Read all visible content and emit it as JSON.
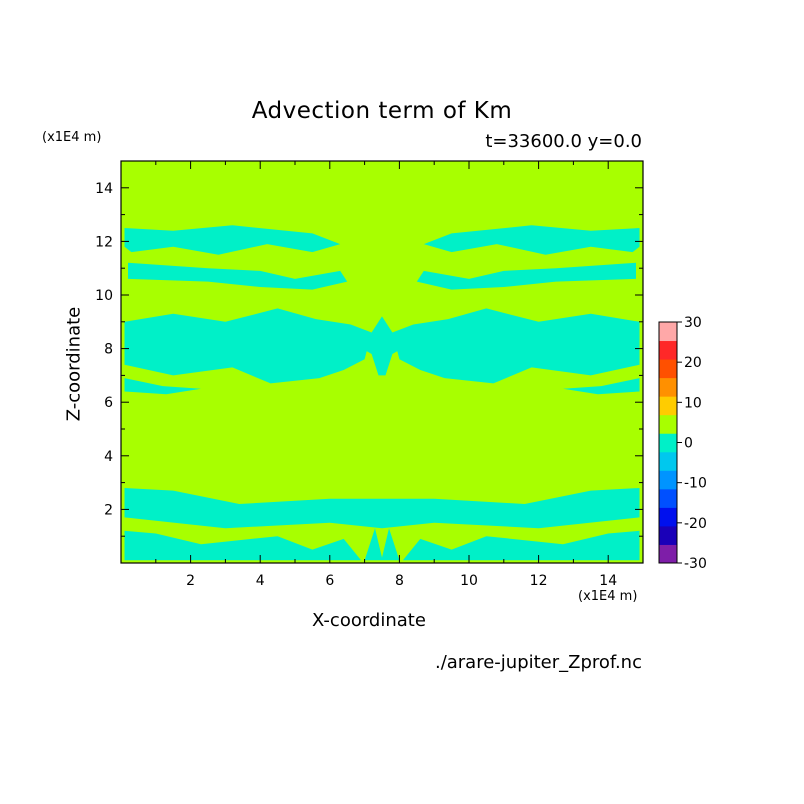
{
  "chart_data": {
    "type": "heatmap",
    "title": "Advection term of Km",
    "subtitle": "t=33600.0 y=0.0",
    "xlabel": "X-coordinate",
    "ylabel": "Z-coordinate",
    "x_unit": "(x1E4 m)",
    "y_unit": "(x1E4 m)",
    "source": "./arare-jupiter_Zprof.nc",
    "xlim": [
      0,
      15
    ],
    "ylim": [
      0,
      15
    ],
    "x_ticks": [
      2,
      4,
      6,
      8,
      10,
      12,
      14
    ],
    "y_ticks": [
      2,
      4,
      6,
      8,
      10,
      12,
      14
    ],
    "colorbar": {
      "levels": [
        -30,
        -25,
        -20,
        -15,
        -10,
        -5,
        0,
        5,
        10,
        15,
        20,
        25,
        30
      ],
      "tick_labels": [
        "30",
        "20",
        "10",
        "0",
        "-10",
        "-20",
        "-30"
      ],
      "tick_values": [
        30,
        20,
        10,
        0,
        -10,
        -20,
        -30
      ],
      "colors": [
        "#7e1ea8",
        "#1a00b8",
        "#0010ee",
        "#0050ff",
        "#0094ff",
        "#00c8ee",
        "#00f0c8",
        "#a8ff00",
        "#ffcc00",
        "#ff9000",
        "#ff5000",
        "#ff2828",
        "#ffa8a8"
      ]
    },
    "background_level_color": "#a8ff00",
    "negative_patch_color": "#00f0c8",
    "negative_regions": [
      {
        "name": "top-band",
        "points": [
          [
            0.1,
            12.5
          ],
          [
            1.5,
            12.4
          ],
          [
            3.2,
            12.6
          ],
          [
            5.5,
            12.3
          ],
          [
            6.3,
            11.9
          ],
          [
            5.5,
            11.6
          ],
          [
            4.2,
            11.9
          ],
          [
            2.8,
            11.5
          ],
          [
            1.5,
            11.8
          ],
          [
            0.3,
            11.6
          ],
          [
            0.1,
            11.8
          ]
        ]
      },
      {
        "name": "top-band-right",
        "points": [
          [
            14.9,
            12.5
          ],
          [
            13.5,
            12.4
          ],
          [
            11.8,
            12.6
          ],
          [
            9.5,
            12.3
          ],
          [
            8.7,
            11.9
          ],
          [
            9.5,
            11.6
          ],
          [
            10.8,
            11.9
          ],
          [
            12.2,
            11.5
          ],
          [
            13.5,
            11.8
          ],
          [
            14.7,
            11.6
          ],
          [
            14.9,
            11.8
          ]
        ]
      },
      {
        "name": "upper-band-left",
        "points": [
          [
            0.2,
            11.2
          ],
          [
            2.5,
            11.0
          ],
          [
            4.0,
            10.9
          ],
          [
            5.0,
            10.6
          ],
          [
            6.3,
            10.9
          ],
          [
            6.5,
            10.5
          ],
          [
            5.5,
            10.2
          ],
          [
            4.0,
            10.3
          ],
          [
            2.5,
            10.5
          ],
          [
            0.2,
            10.6
          ]
        ]
      },
      {
        "name": "upper-band-right",
        "points": [
          [
            14.8,
            11.2
          ],
          [
            12.5,
            11.0
          ],
          [
            11.0,
            10.9
          ],
          [
            10.0,
            10.6
          ],
          [
            8.7,
            10.9
          ],
          [
            8.5,
            10.5
          ],
          [
            9.5,
            10.2
          ],
          [
            11.0,
            10.3
          ],
          [
            12.5,
            10.5
          ],
          [
            14.8,
            10.6
          ]
        ]
      },
      {
        "name": "mid-lobe-left",
        "points": [
          [
            0.1,
            9.0
          ],
          [
            1.5,
            9.3
          ],
          [
            3.0,
            9.0
          ],
          [
            4.5,
            9.5
          ],
          [
            5.6,
            9.1
          ],
          [
            6.6,
            8.9
          ],
          [
            7.2,
            8.6
          ],
          [
            7.0,
            7.6
          ],
          [
            6.4,
            7.2
          ],
          [
            5.7,
            6.9
          ],
          [
            4.3,
            6.7
          ],
          [
            3.2,
            7.3
          ],
          [
            1.5,
            7.0
          ],
          [
            0.1,
            7.4
          ]
        ]
      },
      {
        "name": "mid-lobe-right",
        "points": [
          [
            14.9,
            9.0
          ],
          [
            13.5,
            9.3
          ],
          [
            12.0,
            9.0
          ],
          [
            10.5,
            9.5
          ],
          [
            9.4,
            9.1
          ],
          [
            8.4,
            8.9
          ],
          [
            7.8,
            8.6
          ],
          [
            8.0,
            7.6
          ],
          [
            8.6,
            7.2
          ],
          [
            9.3,
            6.9
          ],
          [
            10.7,
            6.7
          ],
          [
            11.8,
            7.3
          ],
          [
            13.5,
            7.0
          ],
          [
            14.9,
            7.4
          ]
        ]
      },
      {
        "name": "center-star",
        "points": [
          [
            7.5,
            9.2
          ],
          [
            7.8,
            8.6
          ],
          [
            8.2,
            8.1
          ],
          [
            7.8,
            7.8
          ],
          [
            7.6,
            7.0
          ],
          [
            7.4,
            7.0
          ],
          [
            7.2,
            7.8
          ],
          [
            6.8,
            8.1
          ],
          [
            7.2,
            8.6
          ]
        ]
      },
      {
        "name": "lower-left-strip",
        "points": [
          [
            0.1,
            6.9
          ],
          [
            1.2,
            6.6
          ],
          [
            2.3,
            6.5
          ],
          [
            1.3,
            6.3
          ],
          [
            0.1,
            6.4
          ]
        ]
      },
      {
        "name": "lower-right-strip",
        "points": [
          [
            14.9,
            6.9
          ],
          [
            13.8,
            6.6
          ],
          [
            12.7,
            6.5
          ],
          [
            13.7,
            6.3
          ],
          [
            14.9,
            6.4
          ]
        ]
      },
      {
        "name": "low-band",
        "points": [
          [
            0.1,
            2.8
          ],
          [
            1.5,
            2.7
          ],
          [
            3.4,
            2.2
          ],
          [
            6.0,
            2.4
          ],
          [
            9.0,
            2.4
          ],
          [
            11.6,
            2.2
          ],
          [
            13.5,
            2.7
          ],
          [
            14.9,
            2.8
          ],
          [
            14.9,
            1.7
          ],
          [
            12.0,
            1.3
          ],
          [
            9.0,
            1.5
          ],
          [
            7.5,
            1.3
          ],
          [
            6.0,
            1.5
          ],
          [
            3.0,
            1.3
          ],
          [
            0.1,
            1.7
          ]
        ]
      },
      {
        "name": "bottom-left",
        "points": [
          [
            0.1,
            1.2
          ],
          [
            1.0,
            1.1
          ],
          [
            2.3,
            0.7
          ],
          [
            4.5,
            1.0
          ],
          [
            5.5,
            0.5
          ],
          [
            6.4,
            0.9
          ],
          [
            6.9,
            0.1
          ],
          [
            0.1,
            0.1
          ]
        ]
      },
      {
        "name": "bottom-right",
        "points": [
          [
            14.9,
            1.2
          ],
          [
            14.0,
            1.1
          ],
          [
            12.7,
            0.7
          ],
          [
            10.5,
            1.0
          ],
          [
            9.5,
            0.5
          ],
          [
            8.6,
            0.9
          ],
          [
            8.1,
            0.1
          ],
          [
            14.9,
            0.1
          ]
        ]
      },
      {
        "name": "bottom-center",
        "points": [
          [
            7.0,
            0.1
          ],
          [
            7.3,
            1.3
          ],
          [
            7.5,
            0.2
          ],
          [
            7.7,
            1.3
          ],
          [
            8.0,
            0.1
          ]
        ]
      }
    ]
  }
}
